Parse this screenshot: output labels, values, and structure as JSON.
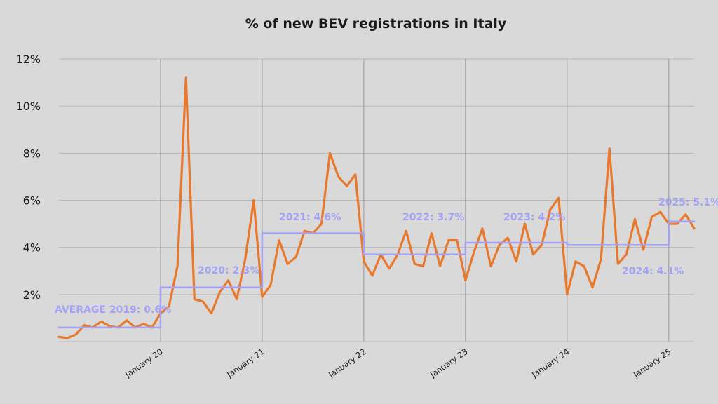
{
  "chart_data": {
    "type": "line",
    "title": "% of new BEV registrations in Italy",
    "xlabel": "",
    "ylabel": "",
    "ylim": [
      0,
      12
    ],
    "yticks": [
      {
        "value": 2,
        "label": "2%"
      },
      {
        "value": 4,
        "label": "4%"
      },
      {
        "value": 6,
        "label": "6%"
      },
      {
        "value": 8,
        "label": "8%"
      },
      {
        "value": 10,
        "label": "10%"
      },
      {
        "value": 12,
        "label": "12%"
      }
    ],
    "xticks": [
      {
        "value": 12,
        "label": "January 20"
      },
      {
        "value": 24,
        "label": "January 21"
      },
      {
        "value": 36,
        "label": "January 22"
      },
      {
        "value": 48,
        "label": "January 23"
      },
      {
        "value": 60,
        "label": "January 24"
      },
      {
        "value": 72,
        "label": "January 25"
      }
    ],
    "grid": true,
    "xlim": [
      0,
      75
    ],
    "x_start": "January 2019",
    "series": [
      {
        "name": "",
        "color": "#e8792c",
        "step": false,
        "values": [
          0.2,
          0.15,
          0.3,
          0.7,
          0.6,
          0.85,
          0.65,
          0.6,
          0.9,
          0.6,
          0.75,
          0.6,
          1.2,
          1.5,
          3.2,
          11.2,
          1.8,
          1.7,
          1.2,
          2.1,
          2.6,
          1.8,
          3.5,
          6.0,
          1.9,
          2.4,
          4.3,
          3.3,
          3.6,
          4.7,
          4.6,
          5.0,
          8.0,
          7.0,
          6.6,
          7.1,
          3.4,
          2.8,
          3.7,
          3.1,
          3.7,
          4.7,
          3.3,
          3.2,
          4.6,
          3.2,
          4.3,
          4.3,
          2.6,
          3.8,
          4.8,
          3.2,
          4.1,
          4.4,
          3.4,
          5.0,
          3.7,
          4.1,
          5.6,
          6.1,
          2.0,
          3.4,
          3.2,
          2.3,
          3.5,
          8.2,
          3.3,
          3.7,
          5.2,
          3.9,
          5.3,
          5.5,
          5.0,
          5.0,
          5.4,
          4.8
        ]
      },
      {
        "name": "",
        "color": "#a3a2f5",
        "step": true,
        "values": [
          0.6,
          0.6,
          0.6,
          0.6,
          0.6,
          0.6,
          0.6,
          0.6,
          0.6,
          0.6,
          0.6,
          0.6,
          2.3,
          2.3,
          2.3,
          2.3,
          2.3,
          2.3,
          2.3,
          2.3,
          2.3,
          2.3,
          2.3,
          2.3,
          4.6,
          4.6,
          4.6,
          4.6,
          4.6,
          4.6,
          4.6,
          4.6,
          4.6,
          4.6,
          4.6,
          4.6,
          3.7,
          3.7,
          3.7,
          3.7,
          3.7,
          3.7,
          3.7,
          3.7,
          3.7,
          3.7,
          3.7,
          3.7,
          4.2,
          4.2,
          4.2,
          4.2,
          4.2,
          4.2,
          4.2,
          4.2,
          4.2,
          4.2,
          4.2,
          4.2,
          4.1,
          4.1,
          4.1,
          4.1,
          4.1,
          4.1,
          4.1,
          4.1,
          4.1,
          4.1,
          4.1,
          4.1,
          5.1,
          5.1,
          5.1,
          5.1
        ]
      }
    ],
    "annotations": [
      {
        "text": "AVERAGE 2019: 0.6%",
        "x": 0,
        "y": 0.6
      },
      {
        "text": "2020: 2.3%",
        "x": 18,
        "y": 2.3
      },
      {
        "text": "2021: 4.6%",
        "x": 30,
        "y": 4.6
      },
      {
        "text": "2022: 3.7%",
        "x": 42,
        "y": 3.7
      },
      {
        "text": "2023: 4.2%",
        "x": 54,
        "y": 4.2
      },
      {
        "text": "2024: 4.1%",
        "x": 66,
        "y": 4.1
      },
      {
        "text": "2025: 5.1%",
        "x": 72,
        "y": 5.1
      }
    ]
  }
}
